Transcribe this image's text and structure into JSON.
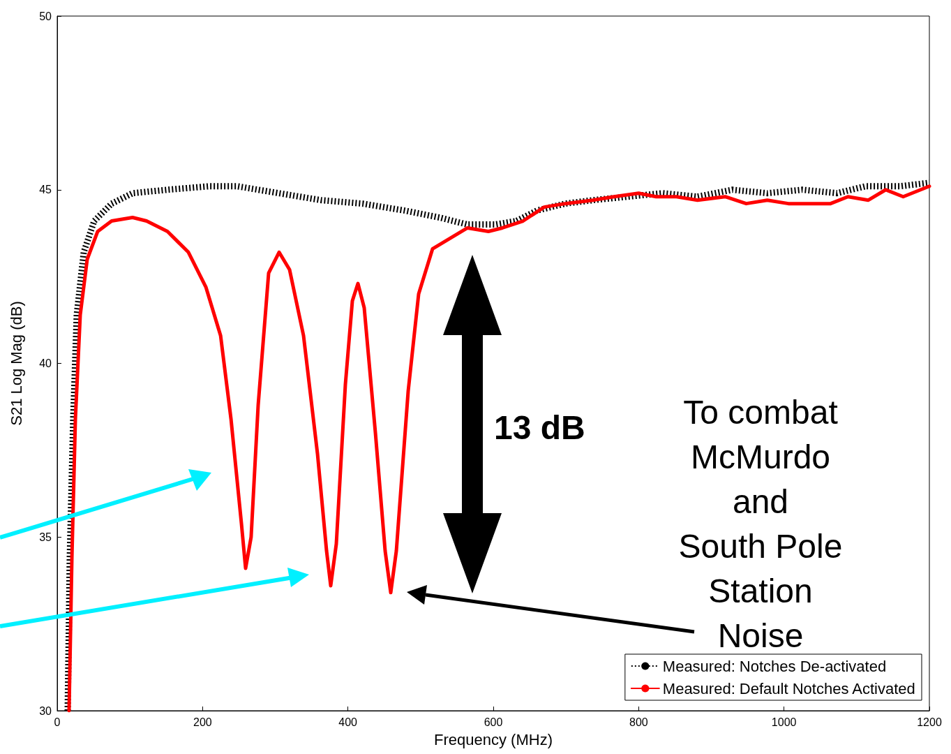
{
  "chart_data": {
    "type": "line",
    "xlabel": "Frequency (MHz)",
    "ylabel": "S21 Log Mag (dB)",
    "xlim": [
      0,
      1200
    ],
    "xticks": [
      0,
      200,
      400,
      600,
      800,
      1000,
      1200
    ],
    "ylim": [
      30,
      50
    ],
    "yticks": [
      30,
      35,
      40,
      45,
      50
    ],
    "grid": false,
    "legend": "bottom right",
    "marker": "none",
    "annotations": [
      "13 dB",
      "To combat\nMcMurdo\nand\nSouth Pole\nStation\nNoise"
    ],
    "series": [
      {
        "name": "Measured: Notches De-activated",
        "color": "#000000",
        "line_style": "dotted",
        "x": [
          14.4,
          17.3,
          22,
          26.9,
          36.5,
          50.9,
          74.9,
          103.7,
          151.7,
          209,
          247.7,
          305,
          363,
          420,
          478,
          526,
          564,
          603,
          632,
          660,
          699,
          737,
          785,
          833,
          881,
          929,
          977,
          1025,
          1073,
          1112,
          1160,
          1200
        ],
        "values": [
          30,
          34.4,
          38.4,
          41.4,
          43.2,
          44.1,
          44.6,
          44.9,
          45.0,
          45.1,
          45.1,
          44.9,
          44.7,
          44.6,
          44.4,
          44.2,
          44.0,
          44.0,
          44.1,
          44.4,
          44.6,
          44.7,
          44.8,
          44.9,
          44.8,
          45.0,
          44.9,
          45.0,
          44.9,
          45.1,
          45.1,
          45.2
        ]
      },
      {
        "name": "Measured: Default Notches Activated",
        "color": "#ff0000",
        "line_style": "solid",
        "x": [
          16.3,
          20.2,
          25,
          31.7,
          41.3,
          55.7,
          74.9,
          103.7,
          122.9,
          151.7,
          180.5,
          204.5,
          224.8,
          239.1,
          253.4,
          259.2,
          266.8,
          276.5,
          290.9,
          305.3,
          319.7,
          338.9,
          358.1,
          370.6,
          376.3,
          384,
          396.5,
          406.1,
          413.8,
          422.4,
          437.8,
          451.2,
          458.9,
          466.6,
          482.9,
          497.3,
          516.5,
          540.5,
          564.5,
          593.3,
          612.5,
          641,
          670,
          699,
          737,
          766,
          800,
          824,
          852,
          881,
          919,
          948,
          977,
          1006,
          1035,
          1064,
          1088,
          1116,
          1140,
          1164,
          1200
        ],
        "values": [
          30,
          34.4,
          38.4,
          41.4,
          43.0,
          43.8,
          44.1,
          44.2,
          44.1,
          43.8,
          43.2,
          42.2,
          40.8,
          38.4,
          35.4,
          34.1,
          35.0,
          38.8,
          42.6,
          43.2,
          42.7,
          40.8,
          37.4,
          34.6,
          33.6,
          34.8,
          39.4,
          41.8,
          42.3,
          41.6,
          38.0,
          34.6,
          33.4,
          34.6,
          39.2,
          42.0,
          43.3,
          43.6,
          43.9,
          43.8,
          43.9,
          44.1,
          44.5,
          44.6,
          44.7,
          44.8,
          44.9,
          44.8,
          44.8,
          44.7,
          44.8,
          44.6,
          44.7,
          44.6,
          44.6,
          44.6,
          44.8,
          44.7,
          45.0,
          44.8,
          45.1
        ]
      }
    ]
  }
}
